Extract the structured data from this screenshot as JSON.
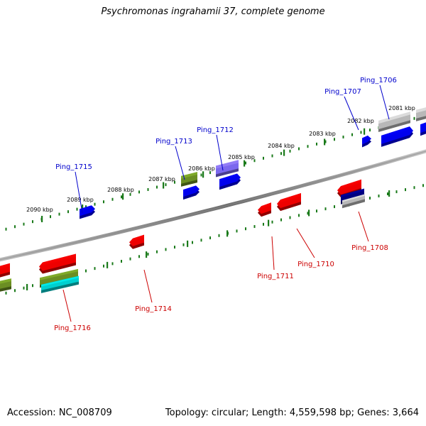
{
  "title": "Psychromonas ingrahamii 37, complete genome",
  "footer": {
    "accession": "Accession: NC_008709",
    "summary": "Topology: circular; Length: 4,559,598 bp; Genes: 3,664"
  },
  "scale_labels": [
    "2081 kbp",
    "2082 kbp",
    "2083 kbp",
    "2084 kbp",
    "2085 kbp",
    "2086 kbp",
    "2087 kbp",
    "2088 kbp",
    "2089 kbp",
    "2090 kbp"
  ],
  "genes_forward": [
    "Ping_1706",
    "Ping_1707",
    "Ping_1712",
    "Ping_1713",
    "Ping_1715"
  ],
  "genes_reverse": [
    "Ping_1708",
    "Ping_1710",
    "Ping_1711",
    "Ping_1714",
    "Ping_1716"
  ],
  "colors": {
    "forward_label": "#0000cc",
    "reverse_label": "#cc0000",
    "backbone": "#888888",
    "ticks": "#1a7a1a",
    "blue": "#0000ee",
    "red": "#ee0000",
    "olive": "#6b8e23",
    "purple": "#7b68ee",
    "gray": "#b8b8b8",
    "navy": "#000080",
    "cyan": "#00d0d0"
  }
}
